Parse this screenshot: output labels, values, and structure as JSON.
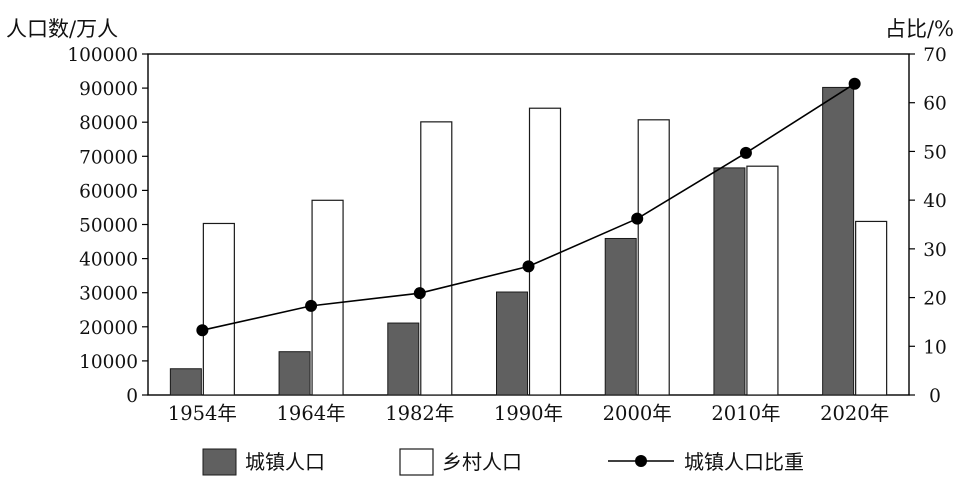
{
  "chart_data": {
    "type": "bar",
    "categories": [
      "1954年",
      "1964年",
      "1982年",
      "1990年",
      "2000年",
      "2010年",
      "2020年"
    ],
    "y_left_label": "人口数/万人",
    "y_right_label": "占比/%",
    "y_left_ticks": [
      "0",
      "10000",
      "20000",
      "30000",
      "40000",
      "50000",
      "60000",
      "70000",
      "80000",
      "90000",
      "100000"
    ],
    "y_right_ticks": [
      "0",
      "10",
      "20",
      "30",
      "40",
      "50",
      "60",
      "70"
    ],
    "ylim_left": [
      0,
      100000
    ],
    "ylim_right": [
      0,
      70
    ],
    "grid": false,
    "legend_position": "bottom",
    "series": [
      {
        "name": "城镇人口",
        "type": "bar",
        "axis": "left",
        "color": "#606060",
        "values": [
          7700,
          12700,
          21100,
          30200,
          45900,
          66600,
          90200
        ]
      },
      {
        "name": "乡村人口",
        "type": "bar",
        "axis": "left",
        "color": "#ffffff",
        "values": [
          50300,
          57100,
          80100,
          84100,
          80700,
          67100,
          50900
        ]
      },
      {
        "name": "城镇人口比重",
        "type": "line",
        "axis": "right",
        "color": "#000000",
        "values": [
          13.3,
          18.3,
          20.9,
          26.4,
          36.2,
          49.7,
          63.9
        ]
      }
    ]
  }
}
